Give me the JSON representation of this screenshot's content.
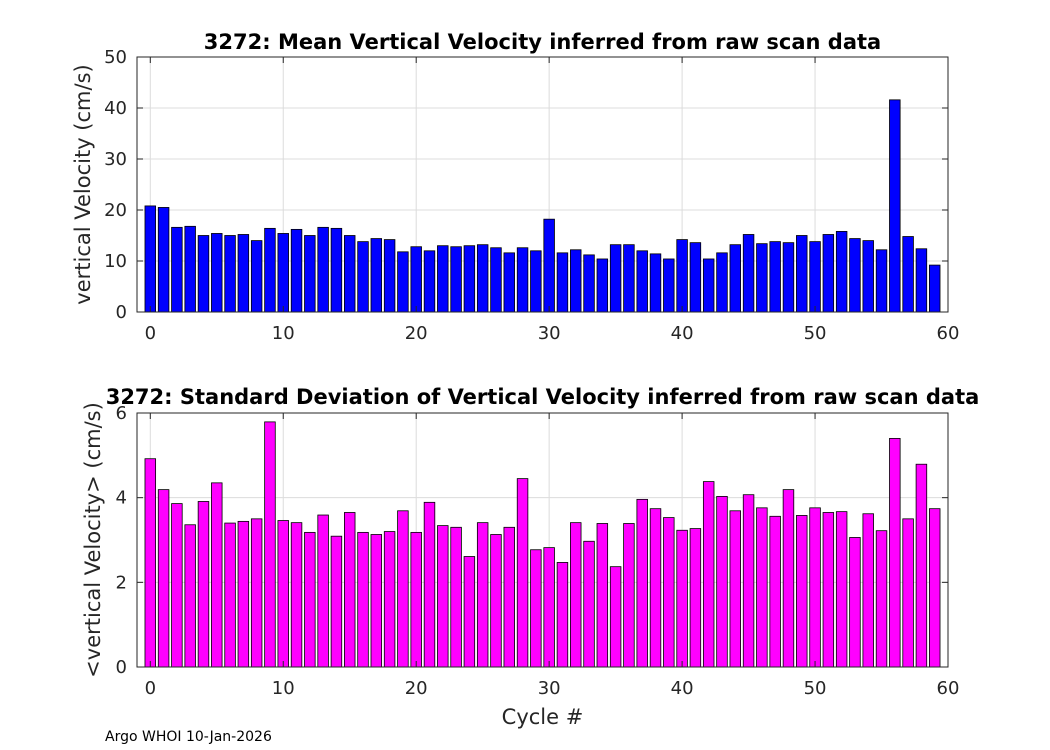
{
  "chart_data": [
    {
      "type": "bar",
      "title": "3272: Mean Vertical Velocity inferred from raw scan data",
      "xlabel": "",
      "ylabel": "vertical Velocity (cm/s)",
      "xlim": [
        -1,
        60
      ],
      "ylim": [
        0,
        50
      ],
      "xticks": [
        0,
        10,
        20,
        30,
        40,
        50,
        60
      ],
      "yticks": [
        0,
        10,
        20,
        30,
        40,
        50
      ],
      "grid": true,
      "bar_color": "#0000ff",
      "x": [
        0,
        1,
        2,
        3,
        4,
        5,
        6,
        7,
        8,
        9,
        10,
        11,
        12,
        13,
        14,
        15,
        16,
        17,
        18,
        19,
        20,
        21,
        22,
        23,
        24,
        25,
        26,
        27,
        28,
        29,
        30,
        31,
        32,
        33,
        34,
        35,
        36,
        37,
        38,
        39,
        40,
        41,
        42,
        43,
        44,
        45,
        46,
        47,
        48,
        49,
        50,
        51,
        52,
        53,
        54,
        55,
        56,
        57,
        58,
        59
      ],
      "values": [
        20.8,
        20.5,
        16.6,
        16.8,
        15.0,
        15.4,
        15.0,
        15.2,
        14.0,
        16.4,
        15.4,
        16.2,
        15.0,
        16.6,
        16.4,
        15.0,
        13.8,
        14.4,
        14.2,
        11.8,
        12.8,
        12.0,
        13.0,
        12.8,
        13.0,
        13.2,
        12.6,
        11.6,
        12.6,
        12.0,
        18.2,
        11.6,
        12.2,
        11.2,
        10.4,
        13.2,
        13.2,
        12.0,
        11.4,
        10.4,
        14.2,
        13.6,
        10.4,
        11.6,
        13.2,
        15.2,
        13.4,
        13.8,
        13.6,
        15.0,
        13.8,
        15.2,
        15.8,
        14.4,
        14.0,
        12.2,
        41.6,
        14.8,
        12.4,
        9.2
      ]
    },
    {
      "type": "bar",
      "title": "3272: Standard Deviation of Vertical Velocity inferred from raw scan data",
      "xlabel": "Cycle #",
      "ylabel": "<vertical Velocity> (cm/s)",
      "xlim": [
        -1,
        60
      ],
      "ylim": [
        0,
        6
      ],
      "xticks": [
        0,
        10,
        20,
        30,
        40,
        50,
        60
      ],
      "yticks": [
        0,
        2,
        4,
        6
      ],
      "grid": true,
      "bar_color": "#ff00ff",
      "x": [
        0,
        1,
        2,
        3,
        4,
        5,
        6,
        7,
        8,
        9,
        10,
        11,
        12,
        13,
        14,
        15,
        16,
        17,
        18,
        19,
        20,
        21,
        22,
        23,
        24,
        25,
        26,
        27,
        28,
        29,
        30,
        31,
        32,
        33,
        34,
        35,
        36,
        37,
        38,
        39,
        40,
        41,
        42,
        43,
        44,
        45,
        46,
        47,
        48,
        49,
        50,
        51,
        52,
        53,
        54,
        55,
        56,
        57,
        58,
        59
      ],
      "values": [
        4.92,
        4.19,
        3.86,
        3.36,
        3.91,
        4.35,
        3.4,
        3.44,
        3.5,
        5.79,
        3.46,
        3.41,
        3.18,
        3.59,
        3.09,
        3.65,
        3.18,
        3.13,
        3.2,
        3.69,
        3.18,
        3.89,
        3.34,
        3.3,
        2.61,
        3.41,
        3.13,
        3.3,
        4.45,
        2.77,
        2.82,
        2.47,
        3.41,
        2.97,
        3.39,
        2.37,
        3.39,
        3.96,
        3.74,
        3.53,
        3.23,
        3.27,
        4.38,
        4.03,
        3.69,
        4.07,
        3.76,
        3.56,
        4.19,
        3.58,
        3.76,
        3.65,
        3.67,
        3.06,
        3.62,
        3.22,
        5.4,
        3.5,
        4.79,
        3.74
      ]
    }
  ],
  "footer": {
    "text": "Argo WHOI 10-Jan-2026"
  }
}
